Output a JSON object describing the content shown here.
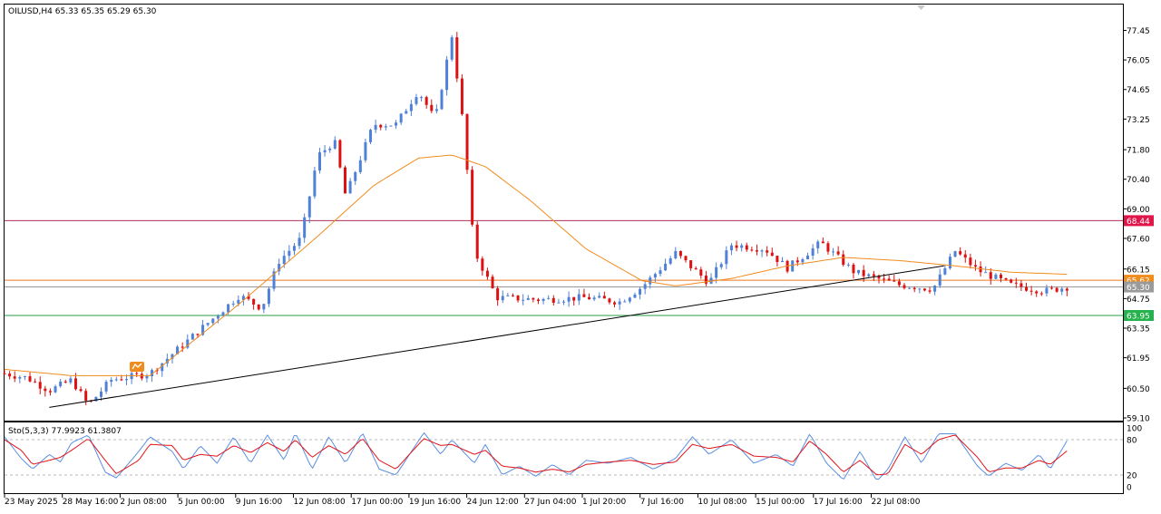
{
  "header": {
    "symbol_line": "OILUSD,H4  65.33 65.35 65.29 65.30",
    "stoch_line": "Sto(5,3,3) 77.9923 61.3807"
  },
  "colors": {
    "bull": "#4f81d8",
    "bear": "#dd1111",
    "ma": "#f08c1e",
    "resistance": "#b0315a",
    "support": "#2e9d4a",
    "level": "#ee7722",
    "trendline": "#000000",
    "stoch_main": "#5b8fe0",
    "stoch_signal": "#e0141a"
  },
  "chart_data": [
    {
      "type": "candlestick",
      "symbol": "OILUSD",
      "timeframe": "H4",
      "ohlc_last": {
        "open": 65.33,
        "high": 65.35,
        "low": 65.29,
        "close": 65.3
      },
      "ylim": [
        59.1,
        78.0
      ],
      "y_ticks": [
        "77.45",
        "76.05",
        "74.65",
        "73.25",
        "71.80",
        "70.40",
        "69.00",
        "67.60",
        "66.15",
        "64.75",
        "63.35",
        "61.95",
        "60.50",
        "59.10"
      ],
      "x_labels": [
        "23 May 2025",
        "28 May 16:00",
        "2 Jun 08:00",
        "5 Jun 00:00",
        "9 Jun 16:00",
        "12 Jun 08:00",
        "17 Jun 00:00",
        "19 Jun 16:00",
        "24 Jun 12:00",
        "27 Jun 04:00",
        "1 Jul 20:00",
        "7 Jul 16:00",
        "10 Jul 08:00",
        "15 Jul 00:00",
        "17 Jul 16:00",
        "22 Jul 08:00"
      ],
      "price_levels": [
        {
          "name": "resistance",
          "value": 68.44,
          "label": "68.44"
        },
        {
          "name": "level-upper",
          "value": 65.62,
          "label": "65.62"
        },
        {
          "name": "current",
          "value": 65.3,
          "label": "65.30"
        },
        {
          "name": "support",
          "value": 63.95,
          "label": "63.95"
        }
      ],
      "trendline": {
        "from": {
          "bar": 0.04,
          "price": 59.6
        },
        "to": {
          "bar": 0.84,
          "price": 66.3
        }
      },
      "anchors": [
        [
          0.0,
          61.2
        ],
        [
          0.02,
          61.0
        ],
        [
          0.04,
          60.4
        ],
        [
          0.06,
          60.9
        ],
        [
          0.075,
          59.7
        ],
        [
          0.095,
          60.9
        ],
        [
          0.13,
          61.2
        ],
        [
          0.21,
          64.9
        ],
        [
          0.23,
          64.3
        ],
        [
          0.245,
          66.5
        ],
        [
          0.265,
          67.6
        ],
        [
          0.28,
          71.5
        ],
        [
          0.295,
          72.2
        ],
        [
          0.305,
          69.6
        ],
        [
          0.33,
          73.0
        ],
        [
          0.35,
          73.0
        ],
        [
          0.37,
          74.6
        ],
        [
          0.385,
          73.2
        ],
        [
          0.4,
          77.2
        ],
        [
          0.41,
          73.0
        ],
        [
          0.42,
          67.0
        ],
        [
          0.44,
          64.8
        ],
        [
          0.48,
          64.7
        ],
        [
          0.52,
          64.8
        ],
        [
          0.55,
          64.6
        ],
        [
          0.57,
          65.3
        ],
        [
          0.6,
          66.9
        ],
        [
          0.63,
          65.5
        ],
        [
          0.65,
          67.3
        ],
        [
          0.68,
          67.1
        ],
        [
          0.7,
          66.2
        ],
        [
          0.73,
          67.4
        ],
        [
          0.76,
          66.0
        ],
        [
          0.8,
          65.4
        ],
        [
          0.83,
          65.2
        ],
        [
          0.85,
          67.0
        ],
        [
          0.87,
          66.1
        ],
        [
          0.9,
          65.4
        ],
        [
          0.93,
          65.1
        ],
        [
          0.95,
          65.3
        ]
      ],
      "ma_anchors": [
        [
          0.0,
          61.4
        ],
        [
          0.06,
          61.1
        ],
        [
          0.13,
          61.1
        ],
        [
          0.21,
          64.5
        ],
        [
          0.28,
          67.7
        ],
        [
          0.33,
          70.1
        ],
        [
          0.37,
          71.4
        ],
        [
          0.4,
          71.55
        ],
        [
          0.43,
          71.0
        ],
        [
          0.47,
          69.4
        ],
        [
          0.52,
          67.1
        ],
        [
          0.57,
          65.6
        ],
        [
          0.6,
          65.35
        ],
        [
          0.65,
          65.7
        ],
        [
          0.7,
          66.3
        ],
        [
          0.75,
          66.7
        ],
        [
          0.8,
          66.55
        ],
        [
          0.85,
          66.3
        ],
        [
          0.9,
          66.0
        ],
        [
          0.95,
          65.9
        ]
      ]
    },
    {
      "type": "line",
      "name": "Sto(5,3,3)",
      "ylim": [
        0,
        100
      ],
      "y_ticks": [
        "100",
        "80",
        "20",
        "0"
      ],
      "levels": [
        80,
        20
      ],
      "last": {
        "main": 77.9923,
        "signal": 61.3807
      },
      "main_anchors": [
        [
          0.0,
          85
        ],
        [
          0.015,
          48
        ],
        [
          0.025,
          30
        ],
        [
          0.04,
          55
        ],
        [
          0.05,
          42
        ],
        [
          0.06,
          75
        ],
        [
          0.075,
          88
        ],
        [
          0.09,
          25
        ],
        [
          0.1,
          15
        ],
        [
          0.12,
          60
        ],
        [
          0.13,
          85
        ],
        [
          0.15,
          60
        ],
        [
          0.16,
          30
        ],
        [
          0.175,
          70
        ],
        [
          0.19,
          40
        ],
        [
          0.205,
          85
        ],
        [
          0.22,
          40
        ],
        [
          0.235,
          88
        ],
        [
          0.25,
          45
        ],
        [
          0.26,
          92
        ],
        [
          0.275,
          30
        ],
        [
          0.29,
          85
        ],
        [
          0.305,
          40
        ],
        [
          0.32,
          92
        ],
        [
          0.335,
          30
        ],
        [
          0.35,
          20
        ],
        [
          0.375,
          92
        ],
        [
          0.39,
          55
        ],
        [
          0.4,
          80
        ],
        [
          0.42,
          40
        ],
        [
          0.43,
          72
        ],
        [
          0.445,
          20
        ],
        [
          0.46,
          35
        ],
        [
          0.475,
          18
        ],
        [
          0.49,
          38
        ],
        [
          0.505,
          20
        ],
        [
          0.52,
          45
        ],
        [
          0.54,
          40
        ],
        [
          0.56,
          50
        ],
        [
          0.58,
          30
        ],
        [
          0.6,
          48
        ],
        [
          0.615,
          85
        ],
        [
          0.63,
          55
        ],
        [
          0.65,
          80
        ],
        [
          0.67,
          40
        ],
        [
          0.69,
          55
        ],
        [
          0.705,
          35
        ],
        [
          0.72,
          90
        ],
        [
          0.735,
          40
        ],
        [
          0.75,
          12
        ],
        [
          0.765,
          60
        ],
        [
          0.78,
          10
        ],
        [
          0.79,
          30
        ],
        [
          0.805,
          85
        ],
        [
          0.82,
          40
        ],
        [
          0.835,
          90
        ],
        [
          0.85,
          90
        ],
        [
          0.87,
          35
        ],
        [
          0.88,
          18
        ],
        [
          0.895,
          40
        ],
        [
          0.91,
          28
        ],
        [
          0.925,
          55
        ],
        [
          0.935,
          30
        ],
        [
          0.95,
          78
        ]
      ],
      "signal_anchors": [
        [
          0.0,
          80
        ],
        [
          0.015,
          62
        ],
        [
          0.025,
          38
        ],
        [
          0.04,
          45
        ],
        [
          0.05,
          50
        ],
        [
          0.06,
          62
        ],
        [
          0.075,
          82
        ],
        [
          0.09,
          45
        ],
        [
          0.1,
          22
        ],
        [
          0.12,
          45
        ],
        [
          0.13,
          72
        ],
        [
          0.15,
          70
        ],
        [
          0.16,
          45
        ],
        [
          0.175,
          55
        ],
        [
          0.19,
          52
        ],
        [
          0.205,
          70
        ],
        [
          0.22,
          58
        ],
        [
          0.235,
          75
        ],
        [
          0.25,
          60
        ],
        [
          0.26,
          80
        ],
        [
          0.275,
          50
        ],
        [
          0.29,
          70
        ],
        [
          0.305,
          55
        ],
        [
          0.32,
          82
        ],
        [
          0.335,
          45
        ],
        [
          0.35,
          30
        ],
        [
          0.375,
          82
        ],
        [
          0.39,
          70
        ],
        [
          0.4,
          72
        ],
        [
          0.42,
          55
        ],
        [
          0.43,
          62
        ],
        [
          0.445,
          35
        ],
        [
          0.46,
          32
        ],
        [
          0.475,
          25
        ],
        [
          0.49,
          30
        ],
        [
          0.505,
          25
        ],
        [
          0.52,
          38
        ],
        [
          0.54,
          42
        ],
        [
          0.56,
          45
        ],
        [
          0.58,
          38
        ],
        [
          0.6,
          42
        ],
        [
          0.615,
          72
        ],
        [
          0.63,
          65
        ],
        [
          0.65,
          72
        ],
        [
          0.67,
          52
        ],
        [
          0.69,
          50
        ],
        [
          0.705,
          42
        ],
        [
          0.72,
          78
        ],
        [
          0.735,
          55
        ],
        [
          0.75,
          25
        ],
        [
          0.765,
          45
        ],
        [
          0.78,
          20
        ],
        [
          0.79,
          22
        ],
        [
          0.805,
          72
        ],
        [
          0.82,
          55
        ],
        [
          0.835,
          80
        ],
        [
          0.85,
          88
        ],
        [
          0.87,
          50
        ],
        [
          0.88,
          25
        ],
        [
          0.895,
          32
        ],
        [
          0.91,
          32
        ],
        [
          0.925,
          45
        ],
        [
          0.935,
          38
        ],
        [
          0.95,
          61
        ]
      ]
    }
  ]
}
